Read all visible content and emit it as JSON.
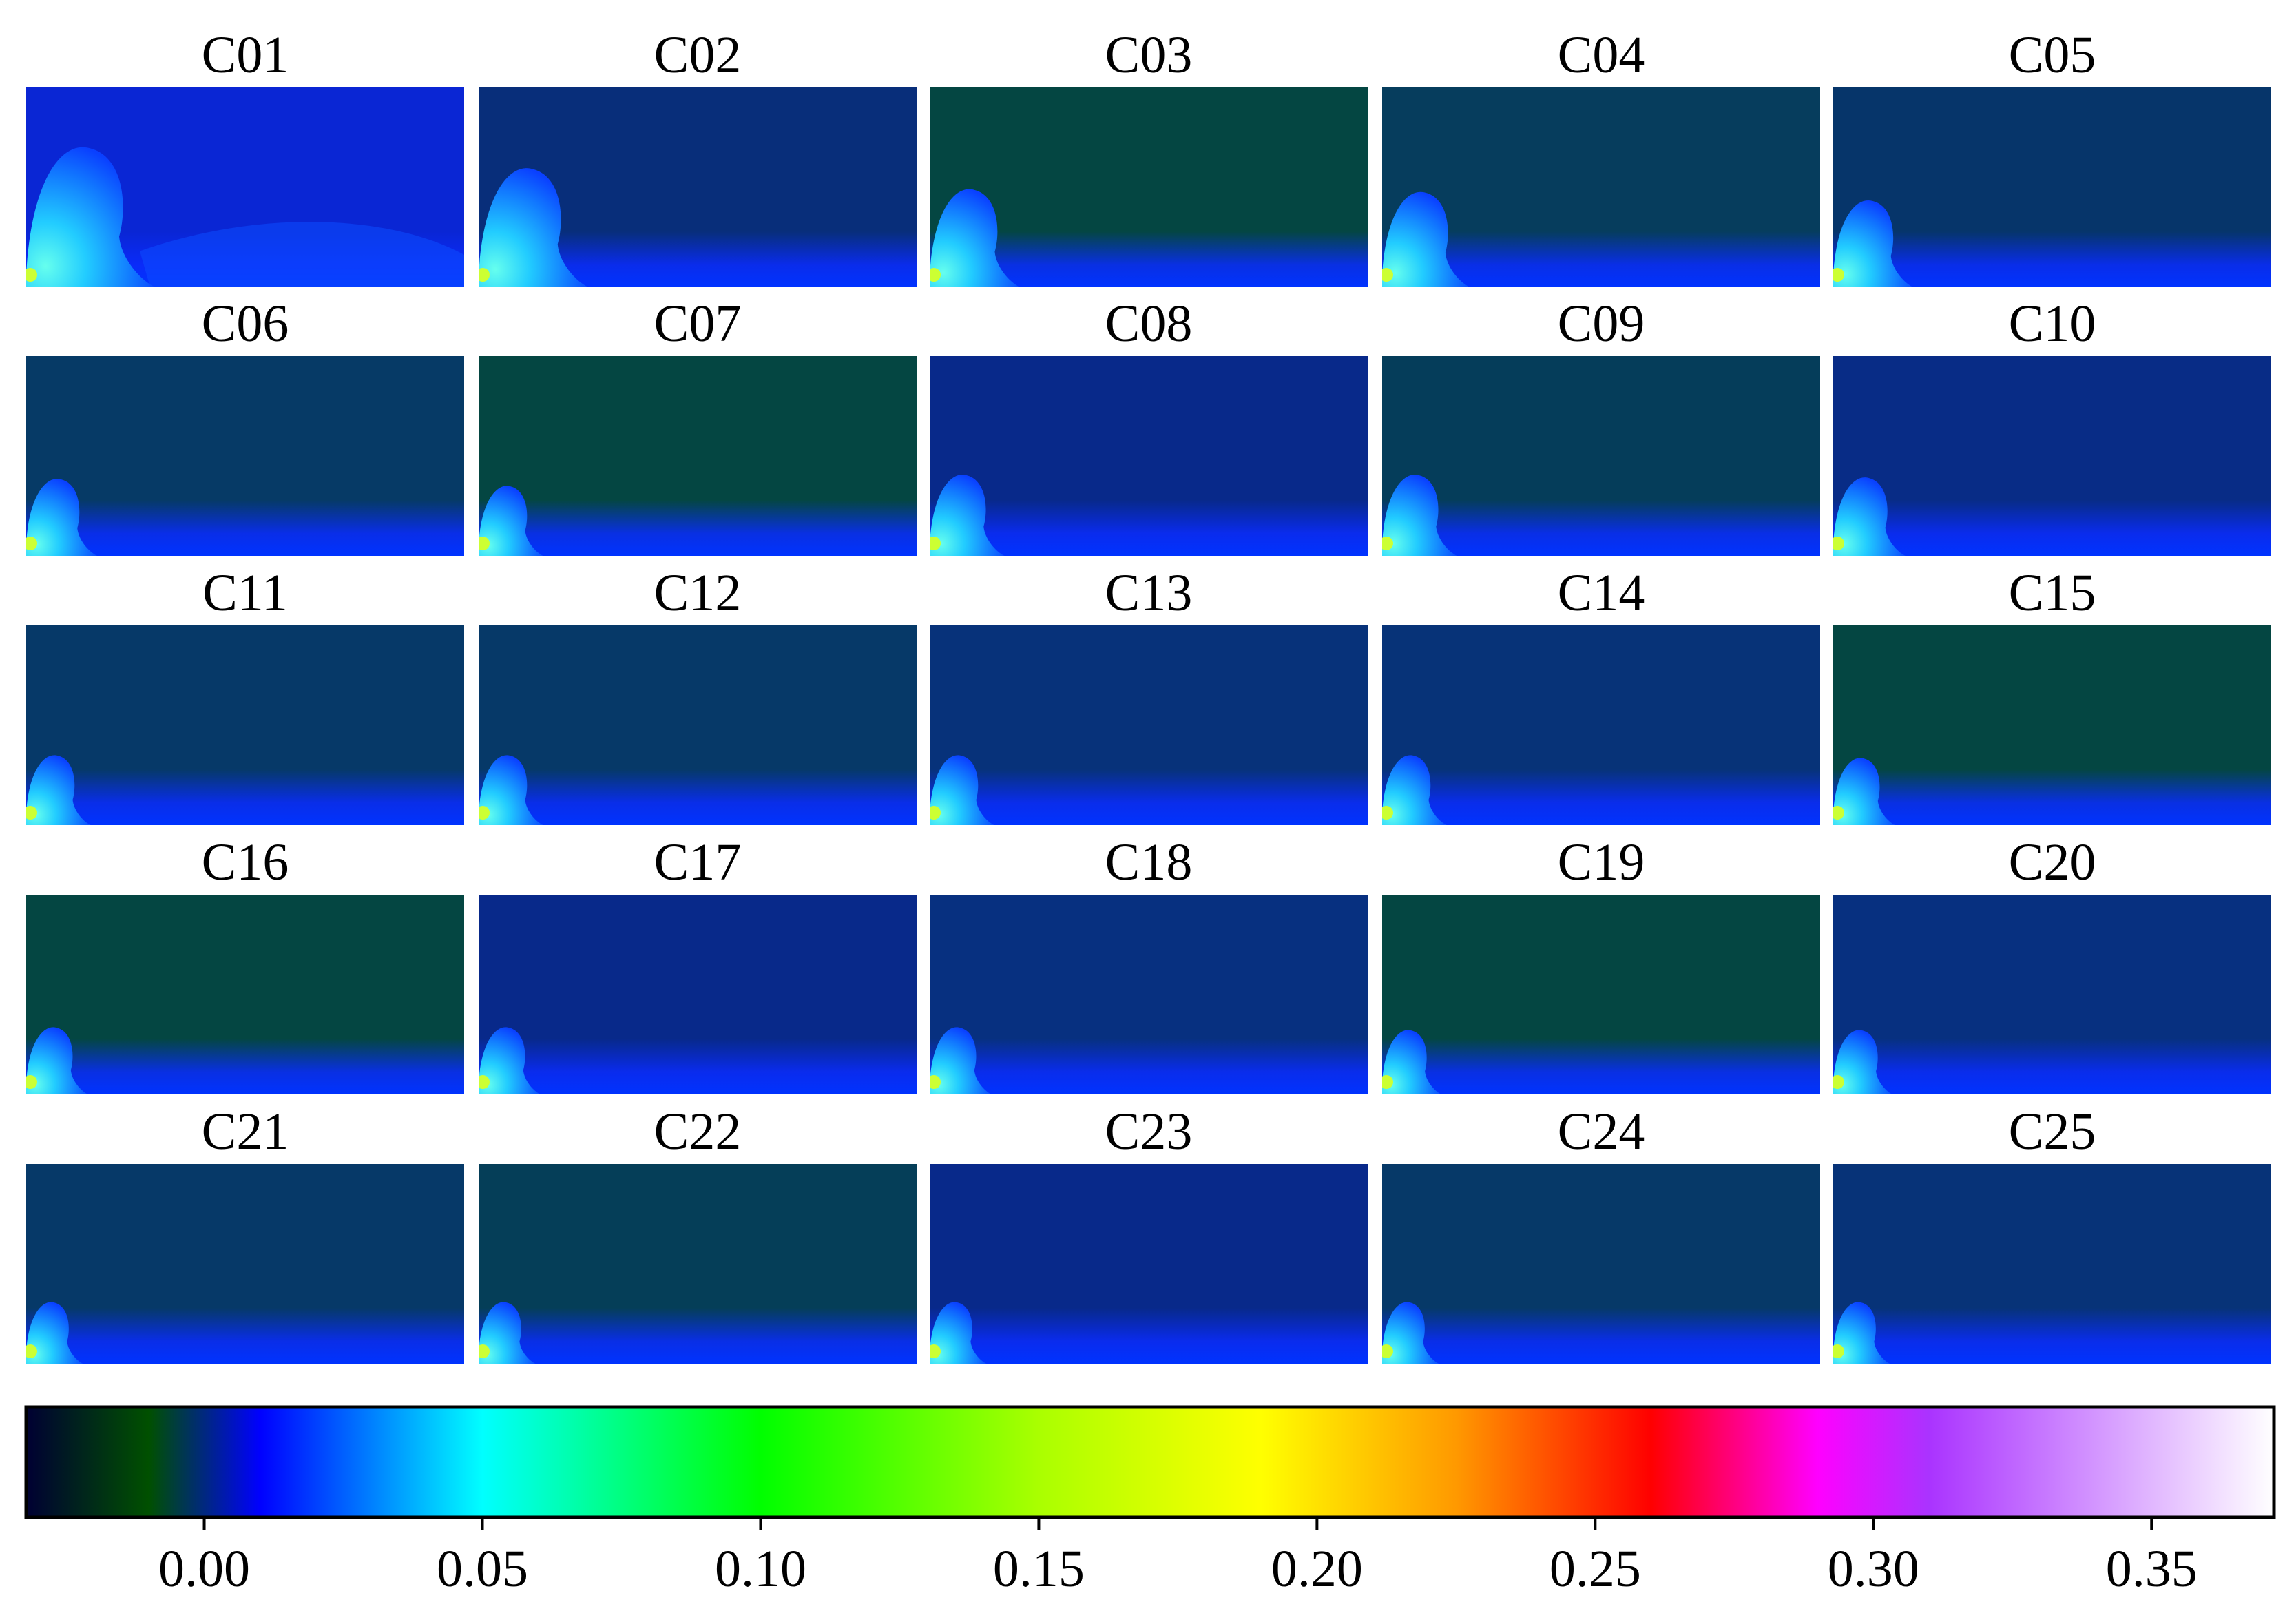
{
  "chart_data": {
    "type": "heatmap",
    "layout": "grid",
    "rows": 5,
    "cols": 5,
    "panels": [
      {
        "title": "C01",
        "background": "#0a26d4",
        "plume_scale": 1.0
      },
      {
        "title": "C02",
        "background": "#082e7a",
        "plume_scale": 0.85
      },
      {
        "title": "C03",
        "background": "#044642",
        "plume_scale": 0.7
      },
      {
        "title": "C04",
        "background": "#063d5d",
        "plume_scale": 0.68
      },
      {
        "title": "C05",
        "background": "#06356a",
        "plume_scale": 0.62
      },
      {
        "title": "C06",
        "background": "#063a66",
        "plume_scale": 0.55
      },
      {
        "title": "C07",
        "background": "#044642",
        "plume_scale": 0.5
      },
      {
        "title": "C08",
        "background": "#08298a",
        "plume_scale": 0.58
      },
      {
        "title": "C09",
        "background": "#053d5a",
        "plume_scale": 0.58
      },
      {
        "title": "C10",
        "background": "#082c86",
        "plume_scale": 0.56
      },
      {
        "title": "C11",
        "background": "#063968",
        "plume_scale": 0.5
      },
      {
        "title": "C12",
        "background": "#063968",
        "plume_scale": 0.5
      },
      {
        "title": "C13",
        "background": "#07327a",
        "plume_scale": 0.5
      },
      {
        "title": "C14",
        "background": "#073378",
        "plume_scale": 0.5
      },
      {
        "title": "C15",
        "background": "#044642",
        "plume_scale": 0.48
      },
      {
        "title": "C16",
        "background": "#044642",
        "plume_scale": 0.48
      },
      {
        "title": "C17",
        "background": "#08298a",
        "plume_scale": 0.48
      },
      {
        "title": "C18",
        "background": "#073080",
        "plume_scale": 0.48
      },
      {
        "title": "C19",
        "background": "#044642",
        "plume_scale": 0.46
      },
      {
        "title": "C20",
        "background": "#073080",
        "plume_scale": 0.46
      },
      {
        "title": "C21",
        "background": "#063968",
        "plume_scale": 0.44
      },
      {
        "title": "C22",
        "background": "#053e58",
        "plume_scale": 0.44
      },
      {
        "title": "C23",
        "background": "#08298a",
        "plume_scale": 0.44
      },
      {
        "title": "C24",
        "background": "#063968",
        "plume_scale": 0.44
      },
      {
        "title": "C25",
        "background": "#073378",
        "plume_scale": 0.44
      }
    ],
    "colorbar": {
      "range": [
        -0.032,
        0.372
      ],
      "ticks": [
        0.0,
        0.05,
        0.1,
        0.15,
        0.2,
        0.25,
        0.3,
        0.35
      ],
      "tick_labels": [
        "0.00",
        "0.05",
        "0.10",
        "0.15",
        "0.20",
        "0.25",
        "0.30",
        "0.35"
      ],
      "orientation": "horizontal",
      "location": "bottom",
      "colormap": [
        {
          "value": -0.032,
          "color": "#000033"
        },
        {
          "value": -0.01,
          "color": "#005000"
        },
        {
          "value": 0.01,
          "color": "#0000ff"
        },
        {
          "value": 0.05,
          "color": "#00ffff"
        },
        {
          "value": 0.1,
          "color": "#00ff00"
        },
        {
          "value": 0.15,
          "color": "#aaff00"
        },
        {
          "value": 0.19,
          "color": "#ffff00"
        },
        {
          "value": 0.225,
          "color": "#ff9900"
        },
        {
          "value": 0.26,
          "color": "#ff0000"
        },
        {
          "value": 0.29,
          "color": "#ff00ff"
        },
        {
          "value": 0.31,
          "color": "#aa33ff"
        },
        {
          "value": 0.372,
          "color": "#ffffff"
        }
      ]
    }
  }
}
